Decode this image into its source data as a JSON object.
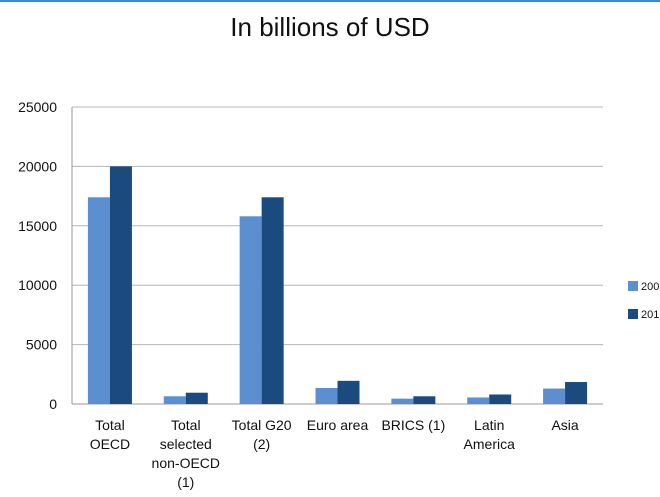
{
  "chart_data": {
    "type": "bar",
    "title": "In billions of USD",
    "xlabel": "",
    "ylabel": "",
    "ylim": [
      0,
      25000
    ],
    "yticks": [
      0,
      5000,
      10000,
      15000,
      20000,
      25000
    ],
    "grid": true,
    "legend_position": "right",
    "categories": [
      [
        "Total",
        "OECD"
      ],
      [
        "Total",
        "selected",
        "non-OECD",
        "(1)"
      ],
      [
        "Total G20",
        "(2)"
      ],
      [
        "Euro area"
      ],
      [
        "BRICS (1)"
      ],
      [
        "Latin",
        "America"
      ],
      [
        "Asia"
      ]
    ],
    "series": [
      {
        "name": "200",
        "color": "#5b8fd0",
        "values": [
          17400,
          650,
          15800,
          1350,
          450,
          550,
          1300
        ]
      },
      {
        "name": "201",
        "color": "#1a4a7e",
        "values": [
          20000,
          950,
          17400,
          1950,
          650,
          800,
          1850
        ]
      }
    ]
  }
}
